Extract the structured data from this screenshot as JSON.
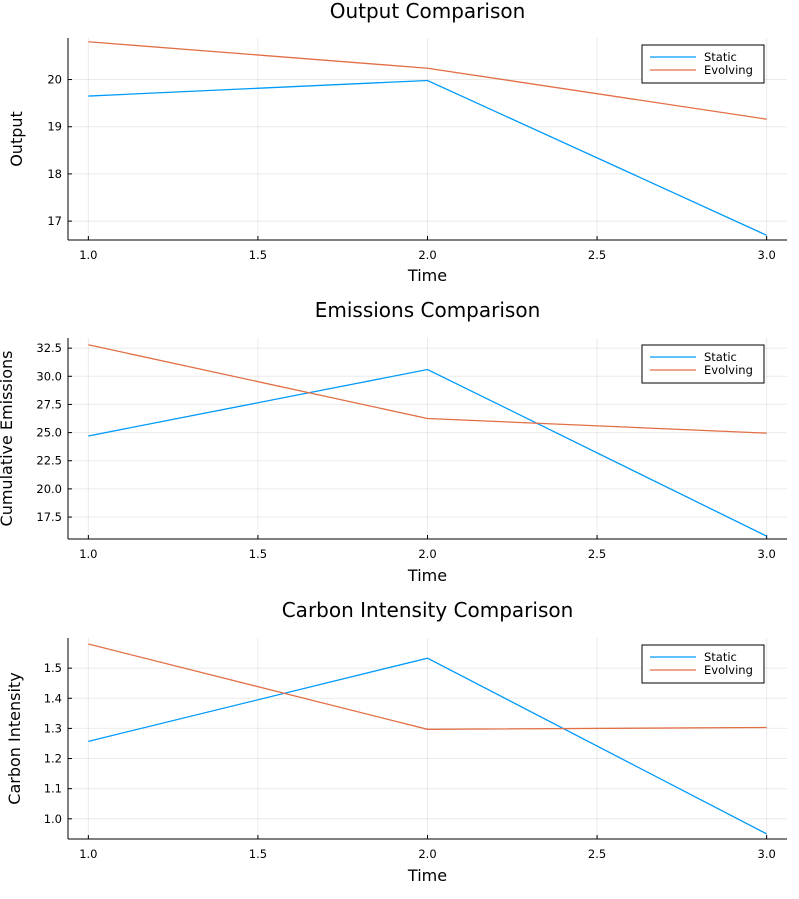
{
  "chart_data": [
    {
      "type": "line",
      "title": "Output Comparison",
      "xlabel": "Time",
      "ylabel": "Output",
      "x": [
        1.0,
        2.0,
        3.0
      ],
      "xlim": [
        0.94,
        3.06
      ],
      "ylim": [
        16.6,
        20.88
      ],
      "xticks": [
        "1.0",
        "1.5",
        "2.0",
        "2.5",
        "3.0"
      ],
      "yticks": [
        "17",
        "18",
        "19",
        "20"
      ],
      "grid": true,
      "legend_position": "top-right",
      "series": [
        {
          "name": "Static",
          "color": "#009AFA",
          "values": [
            19.65,
            19.98,
            16.7
          ]
        },
        {
          "name": "Evolving",
          "color": "#E26F46",
          "values": [
            20.8,
            20.24,
            19.16
          ]
        }
      ]
    },
    {
      "type": "line",
      "title": "Emissions Comparison",
      "xlabel": "Time",
      "ylabel": "Cumulative Emissions",
      "x": [
        1.0,
        2.0,
        3.0
      ],
      "xlim": [
        0.94,
        3.06
      ],
      "ylim": [
        15.55,
        33.4
      ],
      "xticks": [
        "1.0",
        "1.5",
        "2.0",
        "2.5",
        "3.0"
      ],
      "yticks": [
        "17.5",
        "20.0",
        "22.5",
        "25.0",
        "27.5",
        "30.0",
        "32.5"
      ],
      "grid": true,
      "legend_position": "top-right",
      "series": [
        {
          "name": "Static",
          "color": "#009AFA",
          "values": [
            24.7,
            30.6,
            15.8
          ]
        },
        {
          "name": "Evolving",
          "color": "#E26F46",
          "values": [
            32.8,
            26.25,
            24.95
          ]
        }
      ]
    },
    {
      "type": "line",
      "title": "Carbon Intensity Comparison",
      "xlabel": "Time",
      "ylabel": "Carbon Intensity",
      "x": [
        1.0,
        2.0,
        3.0
      ],
      "xlim": [
        0.94,
        3.06
      ],
      "ylim": [
        0.933,
        1.6
      ],
      "xticks": [
        "1.0",
        "1.5",
        "2.0",
        "2.5",
        "3.0"
      ],
      "yticks": [
        "1.0",
        "1.1",
        "1.2",
        "1.3",
        "1.4",
        "1.5"
      ],
      "grid": true,
      "legend_position": "top-right",
      "series": [
        {
          "name": "Static",
          "color": "#009AFA",
          "values": [
            1.257,
            1.533,
            0.95
          ]
        },
        {
          "name": "Evolving",
          "color": "#E26F46",
          "values": [
            1.58,
            1.297,
            1.303
          ]
        }
      ]
    }
  ]
}
